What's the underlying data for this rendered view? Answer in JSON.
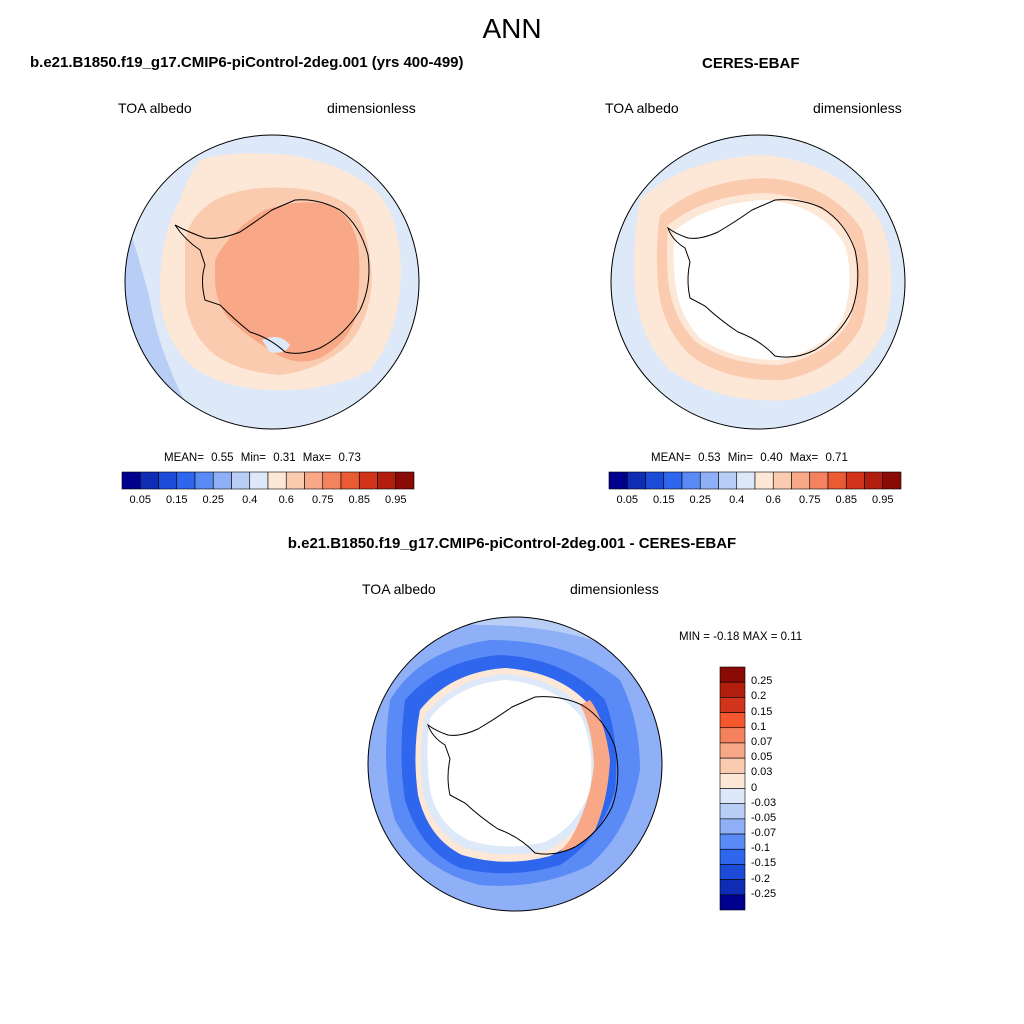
{
  "figure": {
    "title": "ANN"
  },
  "panels": [
    {
      "title": "b.e21.B1850.f19_g17.CMIP6-piControl-2deg.001 (yrs 400-499)",
      "variable": "TOA albedo",
      "units": "dimensionless",
      "stats": {
        "mean_label": "MEAN=",
        "mean": "0.55",
        "min_label": "Min=",
        "min": "0.31",
        "max_label": "Max=",
        "max": "0.73"
      }
    },
    {
      "title": "CERES-EBAF",
      "variable": "TOA albedo",
      "units": "dimensionless",
      "stats": {
        "mean_label": "MEAN=",
        "mean": "0.53",
        "min_label": "Min=",
        "min": "0.40",
        "max_label": "Max=",
        "max": "0.71"
      }
    },
    {
      "title": "b.e21.B1850.f19_g17.CMIP6-piControl-2deg.001 - CERES-EBAF",
      "variable": "TOA albedo",
      "units": "dimensionless",
      "minmax_text": "MIN =  -0.18 MAX =   0.11"
    }
  ],
  "colorbars": {
    "abs": {
      "colors": [
        "#00008f",
        "#0f2cb4",
        "#1c4bd8",
        "#2f66ee",
        "#5a8af5",
        "#8fb0f7",
        "#b8cef6",
        "#dde9f8",
        "#fde7d7",
        "#fbcbb0",
        "#f8a887",
        "#f5825e",
        "#ea5a33",
        "#d2341b",
        "#b11e0e",
        "#8a0a05"
      ],
      "ticks": [
        "0.05",
        "0.15",
        "0.25",
        "0.4",
        "0.6",
        "0.75",
        "0.85",
        "0.95"
      ]
    },
    "diff": {
      "colors": [
        "#8a0a05",
        "#b11e0e",
        "#d2341b",
        "#f5582e",
        "#f5825e",
        "#f8a887",
        "#fbcbb0",
        "#fde7d7",
        "#dde9f8",
        "#b8cef6",
        "#8fb0f7",
        "#5a8af5",
        "#2f66ee",
        "#1c4bd8",
        "#0f2cb4",
        "#00008f"
      ],
      "ticks": [
        "0.25",
        "0.2",
        "0.15",
        "0.1",
        "0.07",
        "0.05",
        "0.03",
        "0",
        "-0.03",
        "-0.05",
        "-0.07",
        "-0.1",
        "-0.15",
        "-0.2",
        "-0.25"
      ]
    }
  }
}
